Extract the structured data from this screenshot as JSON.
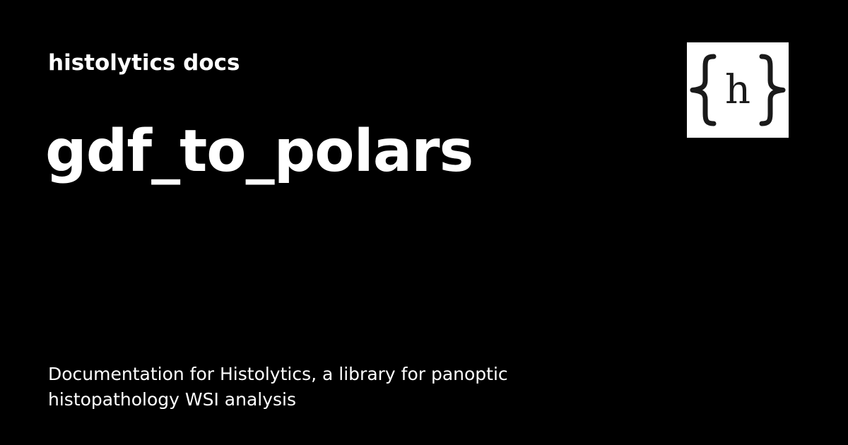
{
  "site": {
    "name": "histolytics docs"
  },
  "page": {
    "title": "gdf_to_polars",
    "description": "Documentation for Histolytics, a library for panoptic histopathology WSI analysis"
  },
  "logo": {
    "icon": "braces-h-logo",
    "letter": "h",
    "background": "#ffffff",
    "foreground": "#1a1a1a"
  },
  "colors": {
    "background": "#000000",
    "text": "#ffffff"
  }
}
